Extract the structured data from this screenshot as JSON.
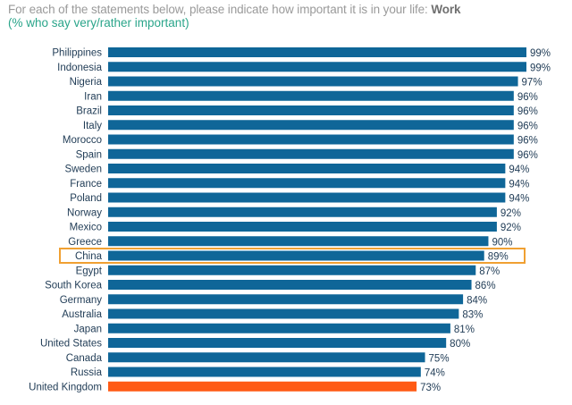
{
  "header": {
    "title_prefix": "For each of the statements below, please indicate how important it is in your life: ",
    "title_emphasis": "Work",
    "subtitle": "(% who say very/rather important)"
  },
  "chart_data": {
    "type": "bar",
    "orientation": "horizontal",
    "title": "For each of the statements below, please indicate how important it is in your life: Work",
    "subtitle": "(% who say very/rather important)",
    "xlabel": "",
    "ylabel": "",
    "xlim": [
      0,
      100
    ],
    "grid": false,
    "legend": "none",
    "value_suffix": "%",
    "categories": [
      "Philippines",
      "Indonesia",
      "Nigeria",
      "Iran",
      "Brazil",
      "Italy",
      "Morocco",
      "Spain",
      "Sweden",
      "France",
      "Poland",
      "Norway",
      "Mexico",
      "Greece",
      "China",
      "Egypt",
      "South Korea",
      "Germany",
      "Australia",
      "Japan",
      "United States",
      "Canada",
      "Russia",
      "United Kingdom"
    ],
    "values": [
      99,
      99,
      97,
      96,
      96,
      96,
      96,
      96,
      94,
      94,
      94,
      92,
      92,
      90,
      89,
      87,
      86,
      84,
      83,
      81,
      80,
      75,
      74,
      73
    ],
    "colors": {
      "default": "#0f6698",
      "highlight_bar": "#ff5a14",
      "highlight_outline": "#f0a032"
    },
    "highlighted_bar": "United Kingdom",
    "outlined_row": "China"
  }
}
